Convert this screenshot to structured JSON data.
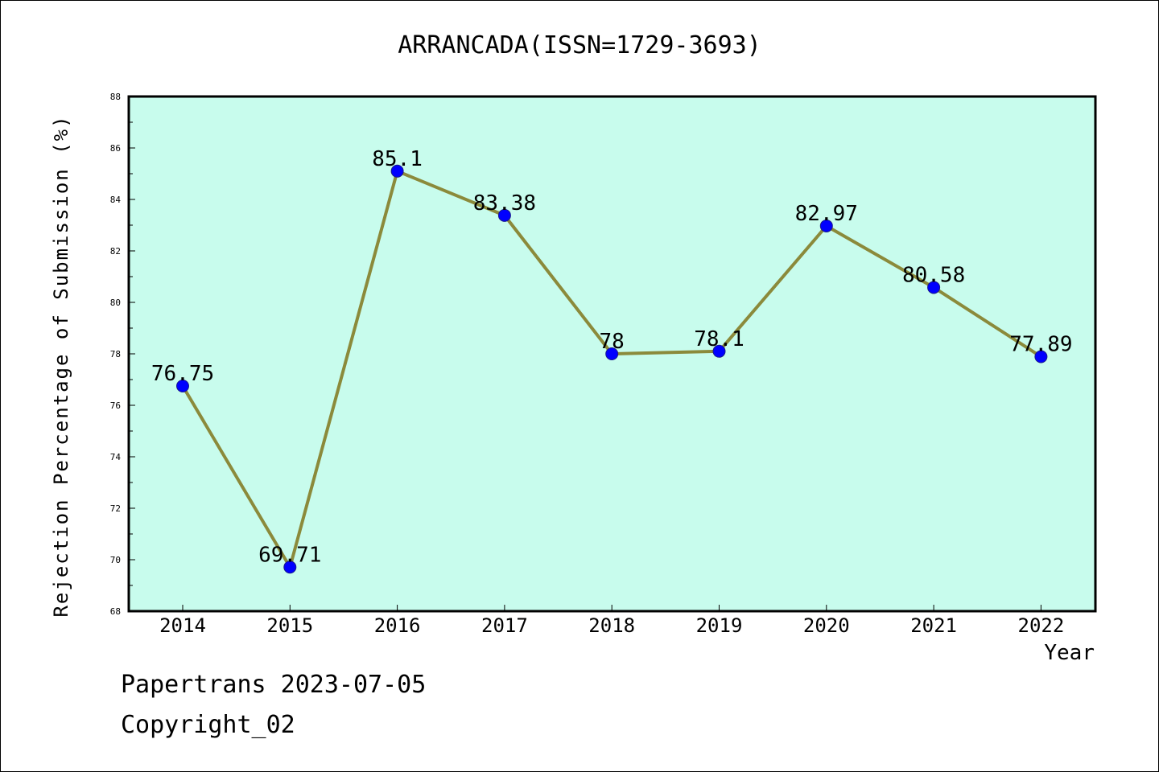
{
  "chart_data": {
    "type": "line",
    "title": "ARRANCADA(ISSN=1729-3693)",
    "xlabel": "Year",
    "ylabel": "Rejection Percentage of Submission (%)",
    "categories": [
      "2014",
      "2015",
      "2016",
      "2017",
      "2018",
      "2019",
      "2020",
      "2021",
      "2022"
    ],
    "series": [
      {
        "values": [
          76.75,
          69.71,
          85.1,
          83.38,
          78,
          78.1,
          82.97,
          80.58,
          77.89
        ],
        "labels": [
          "76.75",
          "69.71",
          "85.1",
          "83.38",
          "78",
          "78.1",
          "82.97",
          "80.58",
          "77.89"
        ]
      }
    ],
    "ylim": [
      68,
      88
    ],
    "yticks": [
      68,
      70,
      72,
      74,
      76,
      78,
      80,
      82,
      84,
      86,
      88
    ],
    "grid": false,
    "colors": {
      "plot_background": "#c8fced",
      "line": "#8b8a3b",
      "marker": "#0000ff",
      "marker_edge": "#1a1a8a"
    }
  },
  "footer": {
    "line1": "Papertrans 2023-07-05",
    "line2": "Copyright_02"
  }
}
